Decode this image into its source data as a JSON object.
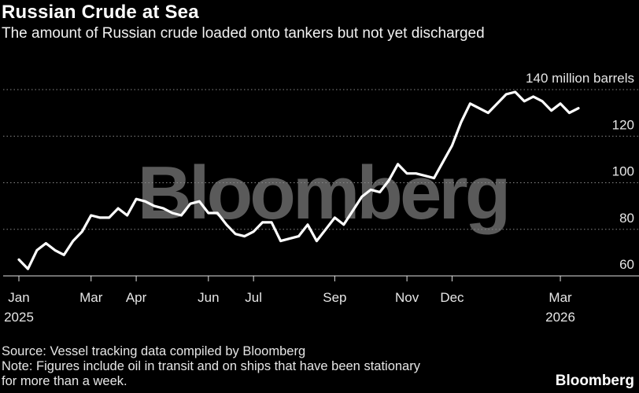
{
  "header": {
    "title": "Russian Crude at Sea",
    "subtitle": "The amount of Russian crude loaded onto tankers but not yet discharged"
  },
  "footer": {
    "source": "Source: Vessel tracking data compiled by Bloomberg",
    "note_line1": "Note: Figures include oil in transit and on ships that have been stationary",
    "note_line2": "for more than a week.",
    "brand": "Bloomberg"
  },
  "chart_data": {
    "type": "line",
    "title": "Russian Crude at Sea",
    "subtitle": "The amount of Russian crude loaded onto tankers but not yet discharged",
    "xlabel": "",
    "ylabel": "million barrels",
    "watermark": "Bloomberg",
    "ylim": [
      55,
      141
    ],
    "grid": true,
    "line_color": "#ffffff",
    "top_label": "140 million barrels",
    "y_ticks": [
      {
        "value": 140,
        "label": "140 million barrels"
      },
      {
        "value": 120,
        "label": "120"
      },
      {
        "value": 100,
        "label": "100"
      },
      {
        "value": 80,
        "label": "80"
      },
      {
        "value": 60,
        "label": "60"
      }
    ],
    "x_ticks": [
      {
        "week": 0,
        "label": "Jan",
        "sublabel": "2025"
      },
      {
        "week": 8,
        "label": "Mar",
        "sublabel": ""
      },
      {
        "week": 13,
        "label": "Apr",
        "sublabel": ""
      },
      {
        "week": 21,
        "label": "Jun",
        "sublabel": ""
      },
      {
        "week": 26,
        "label": "Jul",
        "sublabel": ""
      },
      {
        "week": 35,
        "label": "Sep",
        "sublabel": ""
      },
      {
        "week": 43,
        "label": "Nov",
        "sublabel": ""
      },
      {
        "week": 48,
        "label": "Dec",
        "sublabel": ""
      },
      {
        "week": 60,
        "label": "Mar",
        "sublabel": "2026"
      }
    ],
    "series": [
      {
        "name": "Russian crude at sea (million barrels)",
        "x": [
          0,
          1,
          2,
          3,
          4,
          5,
          6,
          7,
          8,
          9,
          10,
          11,
          12,
          13,
          14,
          15,
          16,
          17,
          18,
          19,
          20,
          21,
          22,
          23,
          24,
          25,
          26,
          27,
          28,
          29,
          30,
          31,
          32,
          33,
          34,
          35,
          36,
          37,
          38,
          39,
          40,
          41,
          42,
          43,
          44,
          45,
          46,
          47,
          48,
          49,
          50,
          51,
          52,
          53,
          54,
          55,
          56,
          57,
          58,
          59,
          60,
          61,
          62
        ],
        "values": [
          67,
          63,
          71,
          74,
          71,
          69,
          75,
          79,
          86,
          85,
          85,
          89,
          86,
          93,
          92,
          90,
          89,
          87,
          86,
          91,
          92,
          87,
          87,
          82,
          78,
          77,
          79,
          83,
          83,
          75,
          76,
          77,
          82,
          75,
          80,
          85,
          82,
          88,
          94,
          97,
          96,
          101,
          108,
          104,
          104,
          103,
          102,
          109,
          116,
          126,
          134,
          132,
          130,
          134,
          138,
          139,
          135,
          137,
          135,
          131,
          134,
          130,
          132
        ]
      }
    ]
  }
}
